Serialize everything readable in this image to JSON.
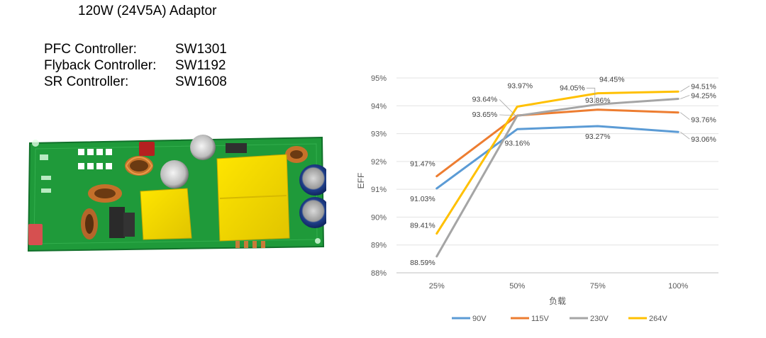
{
  "header": {
    "title": "120W (24V5A) Adaptor",
    "controllers": [
      {
        "label": "PFC Controller:",
        "value": "SW1301"
      },
      {
        "label": "Flyback Controller:",
        "value": "SW1192"
      },
      {
        "label": "SR Controller:",
        "value": "SW1608"
      }
    ]
  },
  "chart_data": {
    "type": "line",
    "categories": [
      "25%",
      "50%",
      "75%",
      "100%"
    ],
    "xlabel": "负载",
    "ylabel": "EFF",
    "ylim": [
      88,
      95
    ],
    "yticks": [
      "88%",
      "89%",
      "90%",
      "91%",
      "92%",
      "93%",
      "94%",
      "95%"
    ],
    "grid": true,
    "legend_position": "bottom",
    "series": [
      {
        "name": "90V",
        "color": "#5b9bd5",
        "values": [
          91.03,
          93.16,
          93.27,
          93.06
        ],
        "labels": [
          "91.03%",
          "93.16%",
          "93.27%",
          "93.06%"
        ]
      },
      {
        "name": "115V",
        "color": "#ed7d31",
        "values": [
          91.47,
          93.65,
          93.86,
          93.76
        ],
        "labels": [
          "91.47%",
          "93.65%",
          "93.86%",
          "93.76%"
        ]
      },
      {
        "name": "230V",
        "color": "#a5a5a5",
        "values": [
          88.59,
          93.64,
          94.05,
          94.25
        ],
        "labels": [
          "88.59%",
          "93.64%",
          "94.05%",
          "94.25%"
        ]
      },
      {
        "name": "264V",
        "color": "#ffc000",
        "values": [
          89.41,
          93.97,
          94.45,
          94.51
        ],
        "labels": [
          "89.41%",
          "93.97%",
          "94.45%",
          "94.51%"
        ]
      }
    ]
  }
}
